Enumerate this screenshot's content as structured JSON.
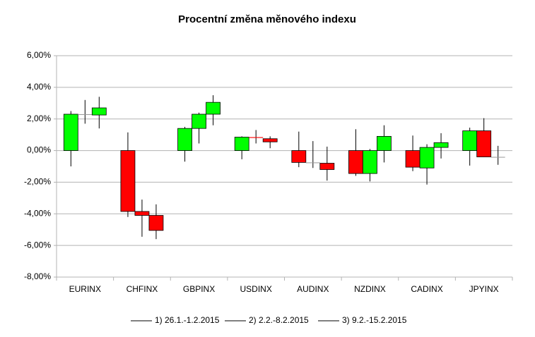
{
  "chart_data": {
    "type": "candlestick",
    "title": "Procentní změna měnového indexu",
    "categories": [
      "EURINX",
      "CHFINX",
      "GBPINX",
      "USDINX",
      "AUDINX",
      "NZDINX",
      "CADINX",
      "JPYINX"
    ],
    "up_color": "#00ff00",
    "down_color": "#ff0000",
    "flat_color": "#999999",
    "grid": true,
    "legend": "bottom",
    "ylim": [
      -8,
      6
    ],
    "yticks": [
      {
        "value": -8,
        "label": "-8,00%"
      },
      {
        "value": -6,
        "label": "-6,00%"
      },
      {
        "value": -4,
        "label": "-4,00%"
      },
      {
        "value": -2,
        "label": "-2,00%"
      },
      {
        "value": 0,
        "label": "0,00%"
      },
      {
        "value": 2,
        "label": "2,00%"
      },
      {
        "value": 4,
        "label": "4,00%"
      },
      {
        "value": 6,
        "label": "6,00%"
      }
    ],
    "series": [
      {
        "name": "1) 26.1.-1.2.2015",
        "color": "#000000",
        "open": [
          0,
          0,
          0,
          0,
          0,
          0,
          0,
          0
        ],
        "high": [
          2.5,
          1.15,
          1.5,
          0.9,
          1.2,
          1.35,
          0.95,
          1.45
        ],
        "low": [
          -1.0,
          -4.2,
          -0.7,
          -0.55,
          -1.05,
          -1.6,
          -1.3,
          -0.95
        ],
        "close": [
          2.3,
          -3.85,
          1.4,
          0.85,
          -0.75,
          -1.45,
          -1.05,
          1.25
        ]
      },
      {
        "name": "2) 2.2.-8.2.2015",
        "color": "#000000",
        "open": [
          2.3,
          -3.85,
          1.4,
          0.85,
          -0.75,
          -1.45,
          -1.1,
          1.25
        ],
        "high": [
          3.2,
          -3.1,
          2.4,
          1.3,
          0.6,
          0.1,
          0.4,
          2.05
        ],
        "low": [
          1.7,
          -5.45,
          0.45,
          0.45,
          -1.1,
          -1.95,
          -2.15,
          -0.4
        ],
        "close": [
          2.3,
          -4.1,
          2.3,
          0.8,
          -0.75,
          0,
          0.2,
          -0.4
        ]
      },
      {
        "name": "3) 9.2.-15.2.2015",
        "color": "#000000",
        "open": [
          2.25,
          -4.1,
          2.3,
          0.75,
          -0.8,
          0,
          0.2,
          -0.4
        ],
        "high": [
          3.4,
          -3.4,
          3.5,
          0.9,
          0.25,
          1.6,
          1.1,
          0.3
        ],
        "low": [
          1.4,
          -5.6,
          1.6,
          0.15,
          -1.9,
          -0.75,
          -0.5,
          -0.9
        ],
        "close": [
          2.7,
          -5.05,
          3.05,
          0.55,
          -1.2,
          0.9,
          0.5,
          -0.4
        ]
      }
    ]
  }
}
